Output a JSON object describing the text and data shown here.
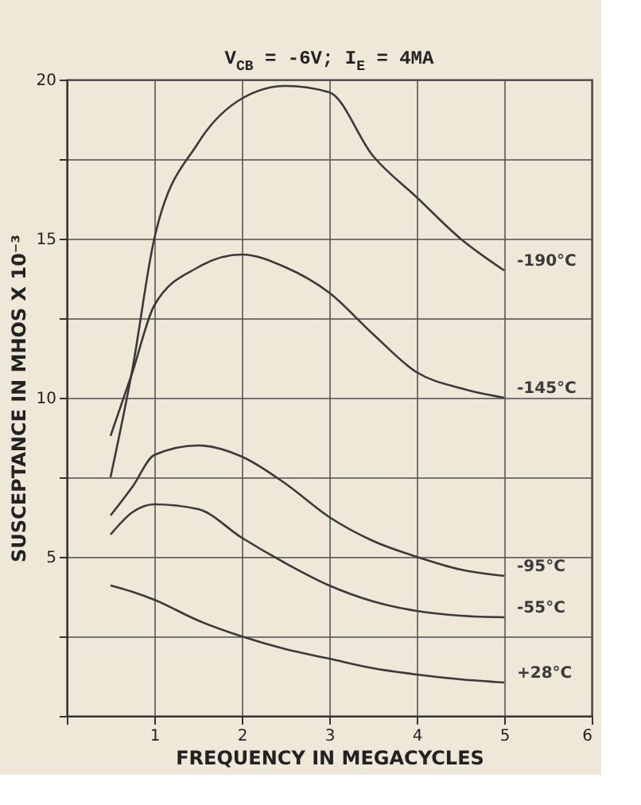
{
  "chart_data": {
    "type": "line",
    "title": "V$_{CB}$ = -6V; I$_{E}$ = 4MA",
    "xlabel": "FREQUENCY IN MEGACYCLES",
    "ylabel": "SUSCEPTANCE IN MHOS X 10⁻³",
    "xlim": [
      0,
      6
    ],
    "xticks": [
      {
        "value": 0,
        "label": null
      },
      1,
      2,
      3,
      4,
      5,
      6
    ],
    "ylim": [
      0,
      20
    ],
    "yticks": [
      {
        "value": 0,
        "label": null
      },
      {
        "value": 2.5,
        "label": null
      },
      5,
      {
        "value": 7.5,
        "label": null
      },
      10,
      {
        "value": 12.5,
        "label": null
      },
      15,
      {
        "value": 17.5,
        "label": null
      },
      20
    ],
    "grid": true,
    "marker": "none",
    "line_style": "solid",
    "legend": false,
    "x": [
      0.5,
      0.75,
      1,
      1.5,
      2,
      2.5,
      3,
      3.5,
      4,
      4.5,
      5
    ],
    "series": [
      {
        "name": "-190°C",
        "color": "#3a3a3a",
        "values": [
          7.5,
          10.9,
          15.0,
          18.0,
          19.4,
          19.8,
          19.6,
          17.6,
          16.3,
          15.0,
          14.0
        ]
      },
      {
        "name": "-145°C",
        "color": "#3a3a3a",
        "values": [
          8.8,
          10.8,
          12.9,
          14.1,
          14.5,
          14.1,
          13.3,
          12.0,
          10.8,
          10.3,
          10.0
        ]
      },
      {
        "name": "-95°C",
        "color": "#3a3a3a",
        "values": [
          6.3,
          7.2,
          8.2,
          8.5,
          8.15,
          7.3,
          6.25,
          5.5,
          5.0,
          4.6,
          4.4
        ]
      },
      {
        "name": "-55°C",
        "color": "#3a3a3a",
        "values": [
          5.7,
          6.4,
          6.65,
          6.5,
          5.6,
          4.8,
          4.1,
          3.6,
          3.3,
          3.15,
          3.1
        ]
      },
      {
        "name": "+28°C",
        "color": "#3a3a3a",
        "values": [
          4.1,
          3.9,
          3.65,
          3.0,
          2.5,
          2.1,
          1.8,
          1.5,
          1.3,
          1.15,
          1.05
        ]
      }
    ]
  }
}
